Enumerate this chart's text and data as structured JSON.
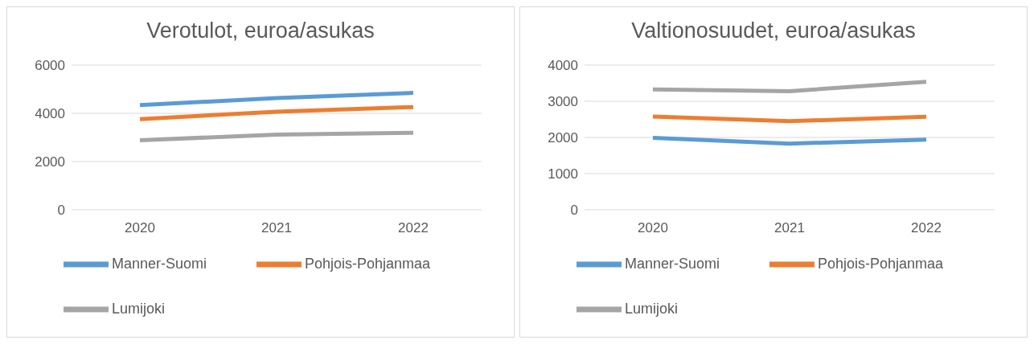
{
  "chart_data": [
    {
      "type": "line",
      "title": "Verotulot, euroa/asukas",
      "categories": [
        "2020",
        "2021",
        "2022"
      ],
      "ylim": [
        0,
        6000
      ],
      "yticks": [
        0,
        2000,
        4000,
        6000
      ],
      "grid": "y",
      "legend": "bottom",
      "marker": "none",
      "series": [
        {
          "name": "Manner-Suomi",
          "color": "#5b9bd5",
          "values": [
            4340,
            4630,
            4850
          ]
        },
        {
          "name": "Pohjois-Pohjanmaa",
          "color": "#ed7d31",
          "values": [
            3760,
            4070,
            4260
          ]
        },
        {
          "name": "Lumijoki",
          "color": "#a5a5a5",
          "values": [
            2880,
            3120,
            3190
          ]
        }
      ]
    },
    {
      "type": "line",
      "title": "Valtionosuudet, euroa/asukas",
      "categories": [
        "2020",
        "2021",
        "2022"
      ],
      "ylim": [
        0,
        4000
      ],
      "yticks": [
        0,
        1000,
        2000,
        3000,
        4000
      ],
      "grid": "y",
      "legend": "bottom",
      "marker": "none",
      "series": [
        {
          "name": "Manner-Suomi",
          "color": "#5b9bd5",
          "values": [
            1990,
            1830,
            1940
          ]
        },
        {
          "name": "Pohjois-Pohjanmaa",
          "color": "#ed7d31",
          "values": [
            2580,
            2450,
            2570
          ]
        },
        {
          "name": "Lumijoki",
          "color": "#a5a5a5",
          "values": [
            3330,
            3280,
            3540
          ]
        }
      ]
    }
  ]
}
